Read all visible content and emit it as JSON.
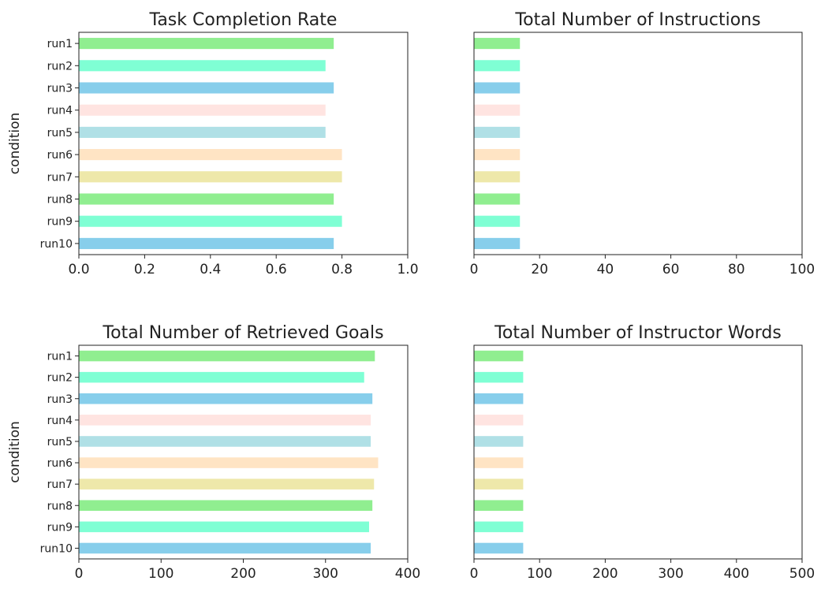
{
  "chart_data": [
    {
      "type": "bar",
      "orientation": "horizontal",
      "title": "Task Completion Rate",
      "xlabel": "",
      "ylabel": "condition",
      "categories": [
        "run1",
        "run2",
        "run3",
        "run4",
        "run5",
        "run6",
        "run7",
        "run8",
        "run9",
        "run10"
      ],
      "values": [
        0.775,
        0.75,
        0.775,
        0.75,
        0.75,
        0.8,
        0.8,
        0.775,
        0.8,
        0.775
      ],
      "xlim": [
        0,
        1.0
      ],
      "xticks": [
        "0.0",
        "0.2",
        "0.4",
        "0.6",
        "0.8",
        "1.0"
      ],
      "grid": false
    },
    {
      "type": "bar",
      "orientation": "horizontal",
      "title": "Total Number of Instructions",
      "xlabel": "",
      "ylabel": "",
      "categories": [
        "run1",
        "run2",
        "run3",
        "run4",
        "run5",
        "run6",
        "run7",
        "run8",
        "run9",
        "run10"
      ],
      "values": [
        14,
        14,
        14,
        14,
        14,
        14,
        14,
        14,
        14,
        14
      ],
      "xlim": [
        0,
        100
      ],
      "xticks": [
        "0",
        "20",
        "40",
        "60",
        "80",
        "100"
      ],
      "grid": false
    },
    {
      "type": "bar",
      "orientation": "horizontal",
      "title": "Total Number of Retrieved Goals",
      "xlabel": "",
      "ylabel": "condition",
      "categories": [
        "run1",
        "run2",
        "run3",
        "run4",
        "run5",
        "run6",
        "run7",
        "run8",
        "run9",
        "run10"
      ],
      "values": [
        360,
        347,
        357,
        355,
        355,
        364,
        359,
        357,
        353,
        355
      ],
      "xlim": [
        0,
        400
      ],
      "xticks": [
        "0",
        "100",
        "200",
        "300",
        "400"
      ],
      "grid": false
    },
    {
      "type": "bar",
      "orientation": "horizontal",
      "title": "Total Number of Instructor Words",
      "xlabel": "",
      "ylabel": "",
      "categories": [
        "run1",
        "run2",
        "run3",
        "run4",
        "run5",
        "run6",
        "run7",
        "run8",
        "run9",
        "run10"
      ],
      "values": [
        75,
        75,
        75,
        75,
        75,
        75,
        75,
        75,
        75,
        75
      ],
      "xlim": [
        0,
        500
      ],
      "xticks": [
        "0",
        "100",
        "200",
        "300",
        "400",
        "500"
      ],
      "grid": false
    }
  ],
  "colors": [
    "#90ee90",
    "#7fffd4",
    "#87ceeb",
    "#ffe4e1",
    "#b0e0e6",
    "#ffe4c4",
    "#eee8aa",
    "#90ee90",
    "#7fffd4",
    "#87ceeb"
  ]
}
